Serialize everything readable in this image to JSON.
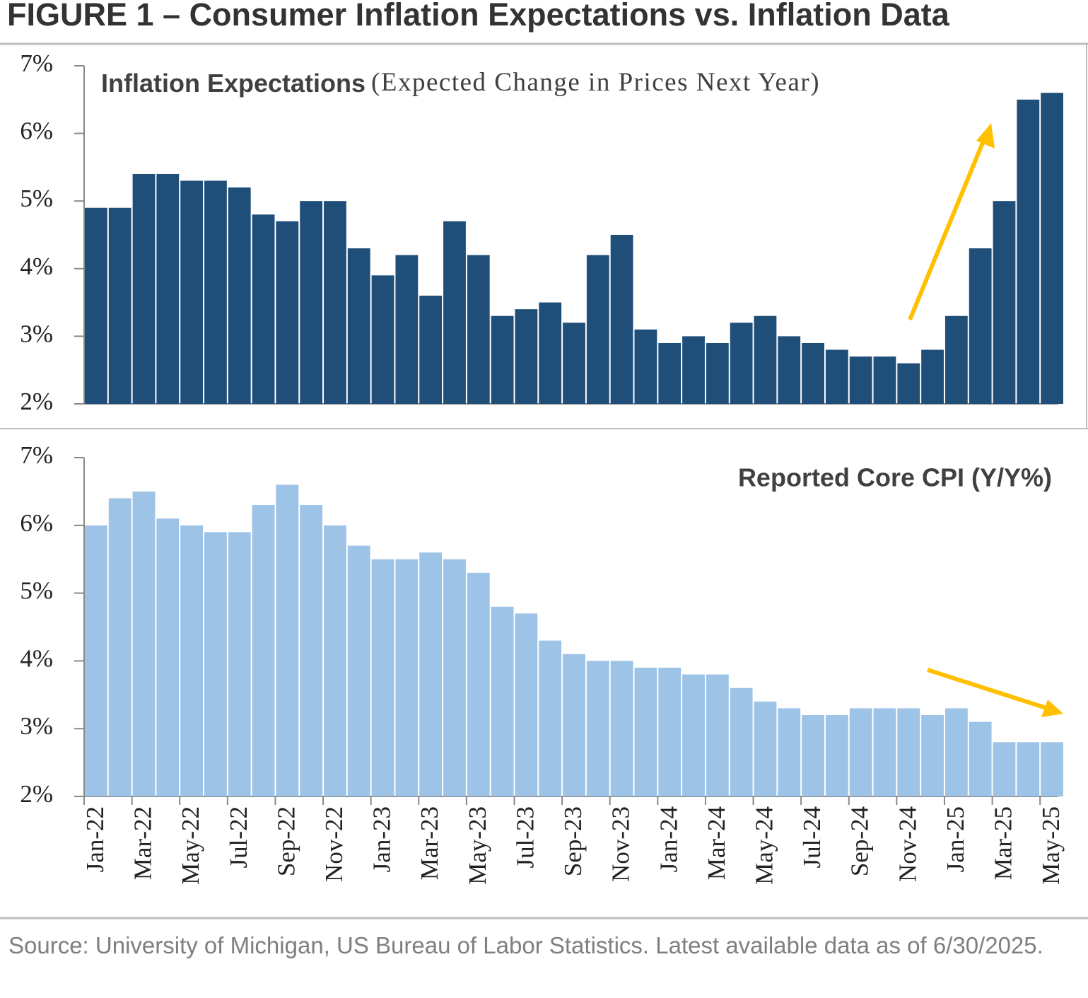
{
  "figure_title": "FIGURE 1 – Consumer Inflation Expectations vs. Inflation Data",
  "source": "Source: University of Michigan, US Bureau of Labor Statistics. Latest available data as of 6/30/2025.",
  "chart_data": [
    {
      "type": "bar",
      "title": "Inflation Expectations",
      "title_note": "(Expected Change in Prices Next Year)",
      "values": [
        4.9,
        4.9,
        5.4,
        5.4,
        5.3,
        5.3,
        5.2,
        4.8,
        4.7,
        5.0,
        5.0,
        4.3,
        3.9,
        4.2,
        3.6,
        4.7,
        4.2,
        3.3,
        3.4,
        3.5,
        3.2,
        4.2,
        4.5,
        3.1,
        2.9,
        3.0,
        2.9,
        3.2,
        3.3,
        3.0,
        2.9,
        2.8,
        2.7,
        2.7,
        2.6,
        2.8,
        3.3,
        4.3,
        5.0,
        6.5,
        6.6
      ],
      "color": "#1f4e79",
      "ylim": [
        2,
        7
      ],
      "yticks": [
        {
          "value": 2,
          "label": "2%"
        },
        {
          "value": 3,
          "label": "3%"
        },
        {
          "value": 4,
          "label": "4%"
        },
        {
          "value": 5,
          "label": "5%"
        },
        {
          "value": 6,
          "label": "6%"
        },
        {
          "value": 7,
          "label": "7%"
        }
      ]
    },
    {
      "type": "bar",
      "title": "Reported Core CPI (Y/Y%)",
      "categories": [
        "Jan-22",
        null,
        "Mar-22",
        null,
        "May-22",
        null,
        "Jul-22",
        null,
        "Sep-22",
        null,
        "Nov-22",
        null,
        "Jan-23",
        null,
        "Mar-23",
        null,
        "May-23",
        null,
        "Jul-23",
        null,
        "Sep-23",
        null,
        "Nov-23",
        null,
        "Jan-24",
        null,
        "Mar-24",
        null,
        "May-24",
        null,
        "Jul-24",
        null,
        "Sep-24",
        null,
        "Nov-24",
        null,
        "Jan-25",
        null,
        "Mar-25",
        null,
        "May-25"
      ],
      "values": [
        6.0,
        6.4,
        6.5,
        6.1,
        6.0,
        5.9,
        5.9,
        6.3,
        6.6,
        6.3,
        6.0,
        5.7,
        5.5,
        5.5,
        5.6,
        5.5,
        5.3,
        4.8,
        4.7,
        4.3,
        4.1,
        4.0,
        4.0,
        3.9,
        3.9,
        3.8,
        3.8,
        3.6,
        3.4,
        3.3,
        3.2,
        3.2,
        3.3,
        3.3,
        3.3,
        3.2,
        3.3,
        3.1,
        2.8,
        2.8,
        2.8
      ],
      "color": "#9dc3e6",
      "ylim": [
        2,
        7
      ],
      "yticks": [
        {
          "value": 2,
          "label": "2%"
        },
        {
          "value": 3,
          "label": "3%"
        },
        {
          "value": 4,
          "label": "4%"
        },
        {
          "value": 5,
          "label": "5%"
        },
        {
          "value": 6,
          "label": "6%"
        },
        {
          "value": 7,
          "label": "7%"
        }
      ]
    }
  ]
}
